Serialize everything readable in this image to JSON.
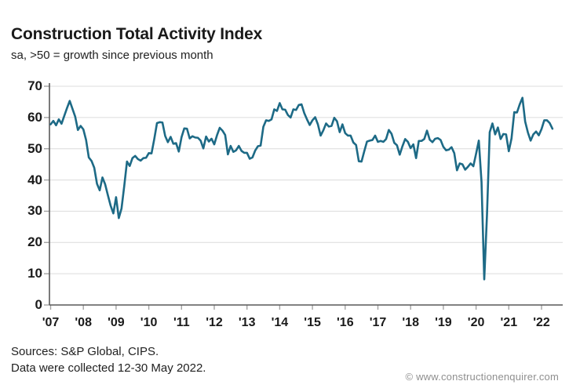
{
  "header": {
    "title": "Construction Total Activity Index",
    "subtitle": "sa, >50 = growth since previous month"
  },
  "footer": {
    "sources": "Sources: S&P Global, CIPS.",
    "collected": "Data were collected 12-30 May 2022.",
    "copyright": "© www.constructionenquirer.com"
  },
  "chart_data": {
    "type": "line",
    "title": "Construction Total Activity Index",
    "subtitle": "sa, >50 = growth since previous month",
    "xlabel": "",
    "ylabel": "",
    "ylim": [
      0,
      70
    ],
    "y_ticks": [
      0,
      10,
      20,
      30,
      40,
      50,
      60,
      70
    ],
    "x_tick_labels": [
      "'07",
      "'08",
      "'09",
      "'10",
      "'11",
      "'12",
      "'13",
      "'14",
      "'15",
      "'16",
      "'17",
      "'18",
      "'19",
      "'20",
      "'21",
      "'22"
    ],
    "grid": "horizontal",
    "legend": "none",
    "line_color": "#1d6a86",
    "axis_color": "#595959",
    "tick_color": "#a3a3a3",
    "grid_color": "#dcdcdc",
    "series_name": "Construction Total Activity Index (sa)",
    "freq": "monthly",
    "start": "2007-01",
    "end": "2022-05",
    "values": [
      57.8,
      58.9,
      57.5,
      59.4,
      58.0,
      60.5,
      63.0,
      65.3,
      62.8,
      60.3,
      56.0,
      57.3,
      56.2,
      52.8,
      47.2,
      46.1,
      43.9,
      38.8,
      36.7,
      40.8,
      38.6,
      35.1,
      31.8,
      29.3,
      34.5,
      27.8,
      30.9,
      38.1,
      45.9,
      44.5,
      47.0,
      47.7,
      46.7,
      46.2,
      47.0,
      47.1,
      48.6,
      48.5,
      53.1,
      58.2,
      58.5,
      58.4,
      54.1,
      52.1,
      53.8,
      51.6,
      51.8,
      49.1,
      53.7,
      56.5,
      56.4,
      53.3,
      54.0,
      53.6,
      53.5,
      52.6,
      50.1,
      53.9,
      52.3,
      53.2,
      51.4,
      54.3,
      56.7,
      55.8,
      54.4,
      48.2,
      50.9,
      49.0,
      49.5,
      50.9,
      49.3,
      48.7,
      48.7,
      46.8,
      47.2,
      49.4,
      50.8,
      51.0,
      57.0,
      59.1,
      58.9,
      59.4,
      62.6,
      62.1,
      64.6,
      62.6,
      62.5,
      60.8,
      60.0,
      62.6,
      62.4,
      64.0,
      64.2,
      61.4,
      59.4,
      57.6,
      59.1,
      60.1,
      57.8,
      54.2,
      55.9,
      58.1,
      57.1,
      57.3,
      59.9,
      58.8,
      55.3,
      57.8,
      55.0,
      54.2,
      54.2,
      52.0,
      51.2,
      46.0,
      45.9,
      49.2,
      52.3,
      52.6,
      52.8,
      54.2,
      52.2,
      52.5,
      52.2,
      53.1,
      56.0,
      54.8,
      51.9,
      51.1,
      48.1,
      50.8,
      53.1,
      52.2,
      50.2,
      51.4,
      47.0,
      52.5,
      52.5,
      53.1,
      55.8,
      52.9,
      52.1,
      53.2,
      53.4,
      52.8,
      50.6,
      49.5,
      49.7,
      50.5,
      48.6,
      43.1,
      45.3,
      45.0,
      43.3,
      44.2,
      45.3,
      44.4,
      48.4,
      52.6,
      39.3,
      8.2,
      28.9,
      55.3,
      58.1,
      54.6,
      56.8,
      53.1,
      54.7,
      54.6,
      49.2,
      53.3,
      61.7,
      61.6,
      64.2,
      66.3,
      58.7,
      55.2,
      52.6,
      54.6,
      55.5,
      54.3,
      56.3,
      59.1,
      59.1,
      58.2,
      56.4
    ]
  }
}
